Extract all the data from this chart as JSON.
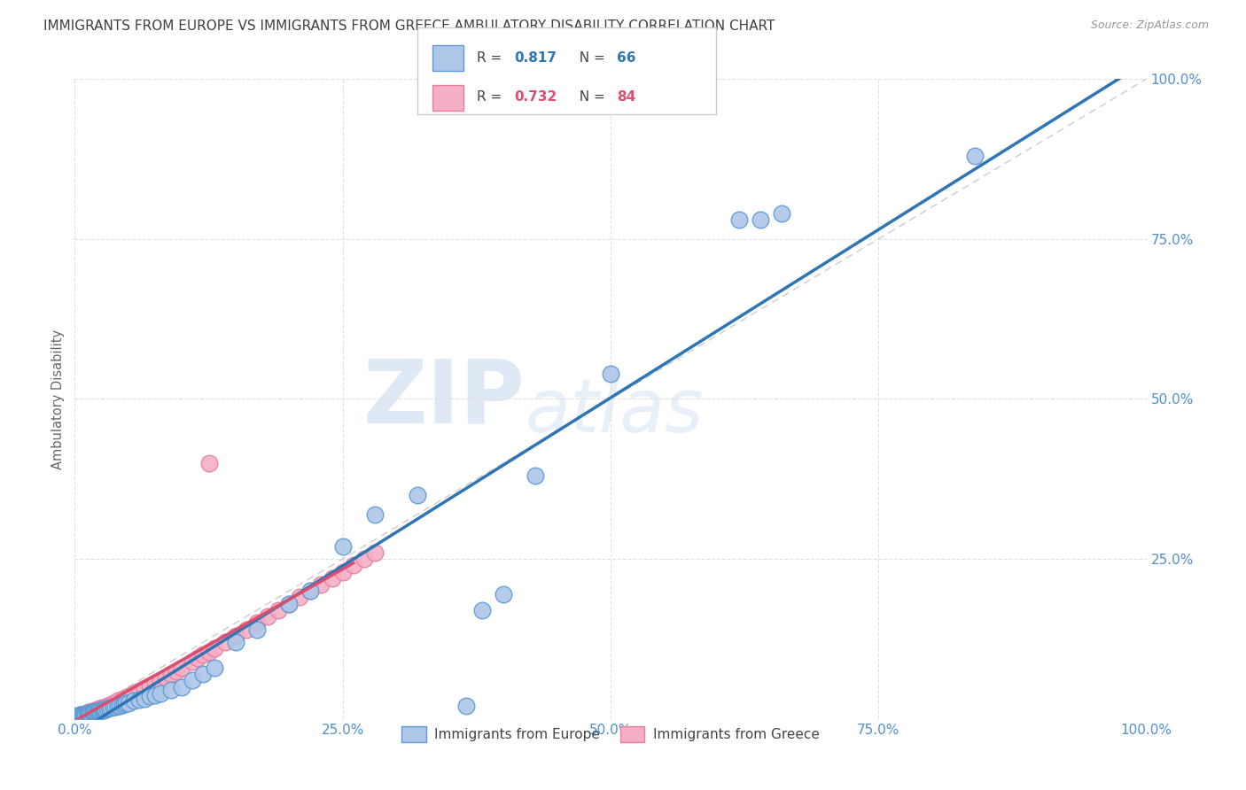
{
  "title": "IMMIGRANTS FROM EUROPE VS IMMIGRANTS FROM GREECE AMBULATORY DISABILITY CORRELATION CHART",
  "source": "Source: ZipAtlas.com",
  "ylabel": "Ambulatory Disability",
  "xlim": [
    0,
    1.0
  ],
  "ylim": [
    0,
    1.0
  ],
  "xticks": [
    0.0,
    0.25,
    0.5,
    0.75,
    1.0
  ],
  "xticklabels": [
    "0.0%",
    "25.0%",
    "50.0%",
    "75.0%",
    "100.0%"
  ],
  "yticks": [
    0.0,
    0.25,
    0.5,
    0.75,
    1.0
  ],
  "yticklabels": [
    "",
    "25.0%",
    "50.0%",
    "75.0%",
    "100.0%"
  ],
  "europe_R": 0.817,
  "europe_N": 66,
  "greece_R": 0.732,
  "greece_N": 84,
  "europe_color": "#aec6e8",
  "europe_edge": "#5b9bd5",
  "greece_color": "#f4afc4",
  "greece_edge": "#e87da0",
  "europe_line_color": "#2e75b6",
  "greece_line_color": "#d94f70",
  "diagonal_color": "#cccccc",
  "watermark_zip": "ZIP",
  "watermark_atlas": "atlas",
  "grid_color": "#e0e0e0",
  "title_color": "#404040",
  "axis_color": "#5090d0",
  "europe_x": [
    0.002,
    0.003,
    0.004,
    0.005,
    0.006,
    0.007,
    0.008,
    0.009,
    0.01,
    0.011,
    0.012,
    0.013,
    0.014,
    0.015,
    0.016,
    0.017,
    0.018,
    0.019,
    0.02,
    0.021,
    0.022,
    0.023,
    0.024,
    0.025,
    0.026,
    0.027,
    0.028,
    0.029,
    0.03,
    0.032,
    0.034,
    0.036,
    0.038,
    0.04,
    0.042,
    0.044,
    0.046,
    0.048,
    0.05,
    0.055,
    0.06,
    0.065,
    0.07,
    0.075,
    0.08,
    0.09,
    0.1,
    0.11,
    0.12,
    0.13,
    0.15,
    0.17,
    0.2,
    0.22,
    0.25,
    0.28,
    0.32,
    0.365,
    0.4,
    0.43,
    0.5,
    0.62,
    0.64,
    0.66,
    0.84,
    0.38
  ],
  "europe_y": [
    0.004,
    0.005,
    0.005,
    0.006,
    0.006,
    0.006,
    0.007,
    0.007,
    0.007,
    0.008,
    0.008,
    0.008,
    0.009,
    0.009,
    0.01,
    0.01,
    0.01,
    0.011,
    0.011,
    0.012,
    0.012,
    0.013,
    0.013,
    0.013,
    0.014,
    0.014,
    0.015,
    0.015,
    0.016,
    0.017,
    0.018,
    0.019,
    0.019,
    0.02,
    0.021,
    0.022,
    0.023,
    0.024,
    0.025,
    0.028,
    0.03,
    0.032,
    0.035,
    0.037,
    0.04,
    0.045,
    0.05,
    0.06,
    0.07,
    0.08,
    0.12,
    0.14,
    0.18,
    0.2,
    0.27,
    0.32,
    0.35,
    0.02,
    0.195,
    0.38,
    0.54,
    0.78,
    0.78,
    0.79,
    0.88,
    0.17
  ],
  "greece_x": [
    0.002,
    0.003,
    0.004,
    0.005,
    0.006,
    0.007,
    0.008,
    0.009,
    0.01,
    0.011,
    0.012,
    0.013,
    0.014,
    0.015,
    0.016,
    0.017,
    0.018,
    0.019,
    0.02,
    0.021,
    0.022,
    0.023,
    0.025,
    0.027,
    0.03,
    0.033,
    0.036,
    0.04,
    0.045,
    0.05,
    0.055,
    0.06,
    0.065,
    0.07,
    0.075,
    0.08,
    0.085,
    0.09,
    0.095,
    0.1,
    0.11,
    0.115,
    0.12,
    0.125,
    0.13,
    0.14,
    0.15,
    0.16,
    0.17,
    0.18,
    0.19,
    0.2,
    0.21,
    0.22,
    0.23,
    0.24,
    0.25,
    0.26,
    0.27,
    0.28,
    0.002,
    0.003,
    0.004,
    0.005,
    0.006,
    0.007,
    0.008,
    0.009,
    0.01,
    0.011,
    0.012,
    0.013,
    0.014,
    0.015,
    0.016,
    0.017,
    0.018,
    0.019,
    0.02,
    0.021,
    0.022,
    0.023,
    0.024,
    0.125
  ],
  "greece_y": [
    0.003,
    0.004,
    0.005,
    0.006,
    0.006,
    0.007,
    0.007,
    0.008,
    0.008,
    0.009,
    0.009,
    0.01,
    0.01,
    0.011,
    0.011,
    0.012,
    0.012,
    0.013,
    0.014,
    0.015,
    0.015,
    0.016,
    0.017,
    0.018,
    0.02,
    0.022,
    0.024,
    0.028,
    0.032,
    0.036,
    0.04,
    0.044,
    0.048,
    0.052,
    0.056,
    0.06,
    0.065,
    0.07,
    0.075,
    0.08,
    0.09,
    0.095,
    0.1,
    0.105,
    0.11,
    0.12,
    0.13,
    0.14,
    0.15,
    0.16,
    0.17,
    0.18,
    0.19,
    0.2,
    0.21,
    0.22,
    0.23,
    0.24,
    0.25,
    0.26,
    0.003,
    0.004,
    0.004,
    0.005,
    0.006,
    0.006,
    0.007,
    0.007,
    0.008,
    0.008,
    0.009,
    0.009,
    0.01,
    0.01,
    0.011,
    0.011,
    0.012,
    0.012,
    0.013,
    0.014,
    0.015,
    0.015,
    0.016,
    0.4
  ],
  "greece_line_x": [
    0.0,
    0.26
  ],
  "europe_line_x": [
    0.0,
    1.0
  ]
}
